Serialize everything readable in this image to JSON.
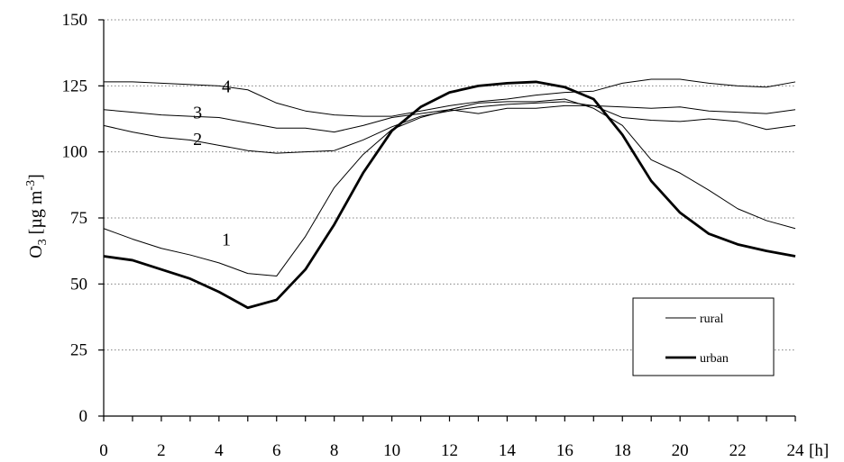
{
  "chart_data": {
    "type": "line",
    "ylabel": {
      "prefix": "O",
      "sub": "3",
      "unit_open": " [µg m",
      "sup": "-3",
      "unit_close": "]"
    },
    "x_unit": "[h]",
    "xlim": [
      0,
      24
    ],
    "ylim": [
      0,
      150
    ],
    "x_ticks": [
      "0",
      "2",
      "4",
      "6",
      "8",
      "10",
      "12",
      "14",
      "16",
      "18",
      "20",
      "22",
      "24"
    ],
    "y_ticks": [
      "0",
      "25",
      "50",
      "75",
      "100",
      "125",
      "150"
    ],
    "grid": {
      "horizontal": true,
      "style": "dotted"
    },
    "legend": {
      "placement": "bottom-right",
      "entries": [
        {
          "label": "rural",
          "style": "thin"
        },
        {
          "label": "urban",
          "style": "thick"
        }
      ]
    },
    "x": [
      0,
      1,
      2,
      3,
      4,
      5,
      6,
      7,
      8,
      9,
      10,
      11,
      12,
      13,
      14,
      15,
      16,
      17,
      18,
      19,
      20,
      21,
      22,
      23,
      24
    ],
    "series": [
      {
        "label": "1",
        "style": "thin",
        "values": [
          71,
          67,
          63.5,
          61,
          58,
          54,
          53,
          68,
          86.5,
          99,
          108.5,
          113,
          116,
          118.5,
          119,
          119,
          120,
          116.5,
          110,
          97,
          92,
          85.5,
          78.5,
          74,
          71
        ]
      },
      {
        "label": "2",
        "style": "thin",
        "values": [
          110,
          107.5,
          105.5,
          104.5,
          102.5,
          100.5,
          99.5,
          100,
          100.5,
          104.5,
          109.5,
          113.5,
          115.5,
          117,
          118,
          118.5,
          119,
          117.5,
          113,
          112,
          111.5,
          112.5,
          111.5,
          108.5,
          110
        ]
      },
      {
        "label": "3",
        "style": "thin",
        "values": [
          116,
          115,
          114,
          113.5,
          113,
          111,
          109,
          109,
          107.5,
          110,
          113,
          114.5,
          116,
          114.5,
          116.5,
          116.5,
          117.5,
          117.5,
          117,
          116.5,
          117,
          115.5,
          115,
          114.5,
          116
        ]
      },
      {
        "label": "4",
        "style": "thin",
        "values": [
          126.5,
          126.5,
          126,
          125.5,
          125,
          123.5,
          118.5,
          115.5,
          114,
          113.5,
          113.5,
          115.5,
          117.5,
          119,
          120,
          121.5,
          122.5,
          123,
          126,
          127.5,
          127.5,
          126,
          125,
          124.5,
          126.5
        ]
      },
      {
        "label": "",
        "style": "thick",
        "values": [
          60.5,
          59,
          55.5,
          52,
          47,
          41,
          44,
          55.5,
          72.5,
          92,
          108,
          117,
          122.5,
          125,
          126,
          126.5,
          124.5,
          120,
          106.5,
          89,
          77,
          69,
          65,
          62.5,
          60.5
        ]
      }
    ]
  }
}
